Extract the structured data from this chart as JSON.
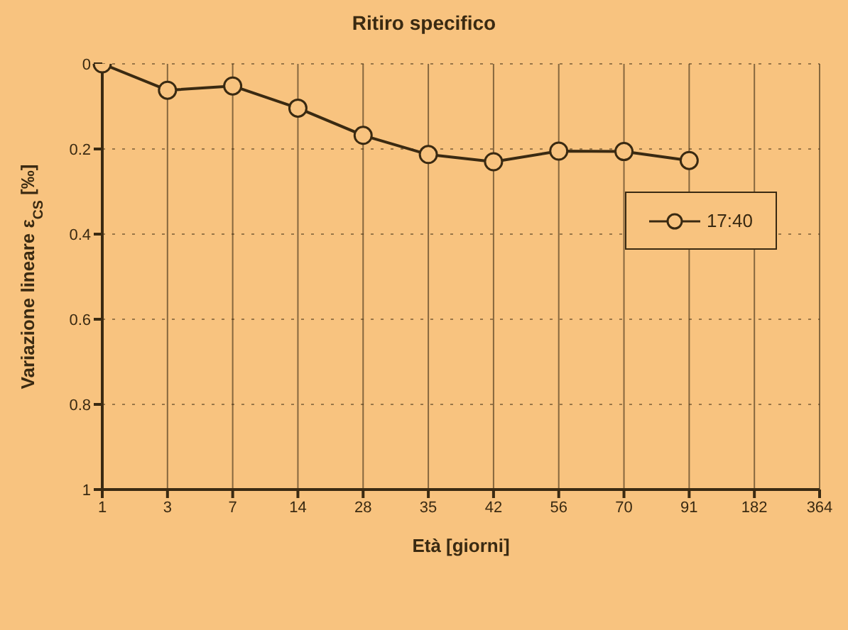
{
  "chart_data": {
    "type": "line",
    "title": "Ritiro specifico",
    "xlabel": "Età [giorni]",
    "ylabel": "Variazione lineare ε$_{CS}$ [‰]",
    "categories": [
      "1",
      "3",
      "7",
      "14",
      "28",
      "35",
      "42",
      "56",
      "70",
      "91",
      "182",
      "364"
    ],
    "series": [
      {
        "name": "17:40",
        "color": "#3a2a12",
        "values": [
          0,
          0.062,
          0.052,
          0.104,
          0.168,
          0.213,
          0.23,
          0.205,
          0.206,
          0.227,
          null,
          null
        ]
      }
    ],
    "ylim": [
      1,
      0
    ],
    "yticks": [
      0,
      0.2,
      0.4,
      0.6,
      0.8,
      1
    ],
    "grid": true,
    "legend": "top right",
    "marker": "circle",
    "line_style": "solid"
  }
}
